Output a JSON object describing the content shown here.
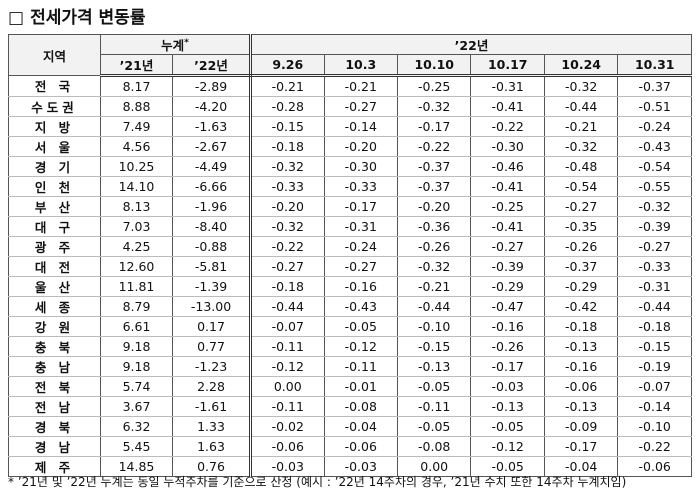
{
  "title": {
    "box": "□",
    "text": "전세가격 변동률"
  },
  "table": {
    "header": {
      "region": "지역",
      "cumulative": "누계",
      "cumulative_mark": "*",
      "year22": "’22년"
    },
    "subheader": [
      "’21년",
      "’22년",
      "9.26",
      "10.3",
      "10.10",
      "10.17",
      "10.24",
      "10.31"
    ],
    "rows": [
      [
        "전 국",
        "8.17",
        "-2.89",
        "-0.21",
        "-0.21",
        "-0.25",
        "-0.31",
        "-0.32",
        "-0.37"
      ],
      [
        "수도권",
        "8.88",
        "-4.20",
        "-0.28",
        "-0.27",
        "-0.32",
        "-0.41",
        "-0.44",
        "-0.51"
      ],
      [
        "지 방",
        "7.49",
        "-1.63",
        "-0.15",
        "-0.14",
        "-0.17",
        "-0.22",
        "-0.21",
        "-0.24"
      ],
      [
        "서 울",
        "4.56",
        "-2.67",
        "-0.18",
        "-0.20",
        "-0.22",
        "-0.30",
        "-0.32",
        "-0.43"
      ],
      [
        "경 기",
        "10.25",
        "-4.49",
        "-0.32",
        "-0.30",
        "-0.37",
        "-0.46",
        "-0.48",
        "-0.54"
      ],
      [
        "인 천",
        "14.10",
        "-6.66",
        "-0.33",
        "-0.33",
        "-0.37",
        "-0.41",
        "-0.54",
        "-0.55"
      ],
      [
        "부 산",
        "8.13",
        "-1.96",
        "-0.20",
        "-0.17",
        "-0.20",
        "-0.25",
        "-0.27",
        "-0.32"
      ],
      [
        "대 구",
        "7.03",
        "-8.40",
        "-0.32",
        "-0.31",
        "-0.36",
        "-0.41",
        "-0.35",
        "-0.39"
      ],
      [
        "광 주",
        "4.25",
        "-0.88",
        "-0.22",
        "-0.24",
        "-0.26",
        "-0.27",
        "-0.26",
        "-0.27"
      ],
      [
        "대 전",
        "12.60",
        "-5.81",
        "-0.27",
        "-0.27",
        "-0.32",
        "-0.39",
        "-0.37",
        "-0.33"
      ],
      [
        "울 산",
        "11.81",
        "-1.39",
        "-0.18",
        "-0.16",
        "-0.21",
        "-0.29",
        "-0.29",
        "-0.31"
      ],
      [
        "세 종",
        "8.79",
        "-13.00",
        "-0.44",
        "-0.43",
        "-0.44",
        "-0.47",
        "-0.42",
        "-0.44"
      ],
      [
        "강 원",
        "6.61",
        "0.17",
        "-0.07",
        "-0.05",
        "-0.10",
        "-0.16",
        "-0.18",
        "-0.18"
      ],
      [
        "충 북",
        "9.18",
        "0.77",
        "-0.11",
        "-0.12",
        "-0.15",
        "-0.26",
        "-0.13",
        "-0.15"
      ],
      [
        "충 남",
        "9.18",
        "-1.23",
        "-0.12",
        "-0.11",
        "-0.13",
        "-0.17",
        "-0.16",
        "-0.19"
      ],
      [
        "전 북",
        "5.74",
        "2.28",
        "0.00",
        "-0.01",
        "-0.05",
        "-0.03",
        "-0.06",
        "-0.07"
      ],
      [
        "전 남",
        "3.67",
        "-1.61",
        "-0.11",
        "-0.08",
        "-0.11",
        "-0.13",
        "-0.13",
        "-0.14"
      ],
      [
        "경 북",
        "6.32",
        "1.33",
        "-0.02",
        "-0.04",
        "-0.05",
        "-0.05",
        "-0.09",
        "-0.10"
      ],
      [
        "경 남",
        "5.45",
        "1.63",
        "-0.06",
        "-0.06",
        "-0.08",
        "-0.12",
        "-0.17",
        "-0.22"
      ],
      [
        "제 주",
        "14.85",
        "0.76",
        "-0.03",
        "-0.03",
        "0.00",
        "-0.05",
        "-0.04",
        "-0.06"
      ]
    ]
  },
  "footnote": "*  ’21년 및 ’22년 누계는 동일 누적주차를 기준으로 산정 (예시 : ’22년 14주차의 경우, ’21년 수치 또한 14주차 누계치임)"
}
